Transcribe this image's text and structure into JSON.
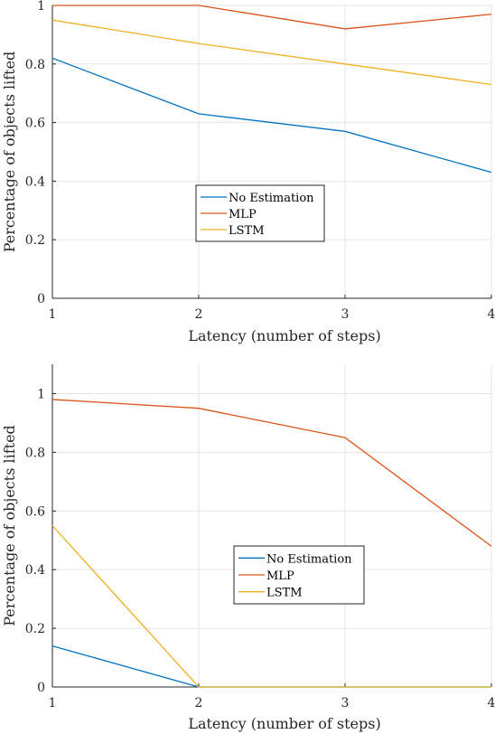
{
  "colors": {
    "no_estimation": "#0072bd",
    "mlp": "#d95319",
    "lstm": "#edb120"
  },
  "chart_data": [
    {
      "type": "line",
      "xlabel": "Latency (number of steps)",
      "ylabel": "Percentage of objects lifted",
      "x": [
        1,
        2,
        3,
        4
      ],
      "xticks": [
        "1",
        "2",
        "3",
        "4"
      ],
      "yticks": [
        "0",
        "0.2",
        "0.4",
        "0.6",
        "0.8",
        "1"
      ],
      "xlim": [
        1,
        4
      ],
      "ylim": [
        0,
        1
      ],
      "grid": true,
      "legend_position": "center-left",
      "series": [
        {
          "name": "No Estimation",
          "values": [
            0.82,
            0.63,
            0.57,
            0.43
          ]
        },
        {
          "name": "MLP",
          "values": [
            1.0,
            1.0,
            0.92,
            0.97
          ]
        },
        {
          "name": "LSTM",
          "values": [
            0.95,
            0.87,
            0.8,
            0.73
          ]
        }
      ]
    },
    {
      "type": "line",
      "xlabel": "Latency (number of steps)",
      "ylabel": "Percentage of objects lifted",
      "x": [
        1,
        2,
        3,
        4
      ],
      "xticks": [
        "1",
        "2",
        "3",
        "4"
      ],
      "yticks": [
        "0",
        "0.2",
        "0.4",
        "0.6",
        "0.8",
        "1"
      ],
      "xlim": [
        1,
        4
      ],
      "ylim": [
        0,
        1.1
      ],
      "grid": true,
      "legend_position": "center",
      "series": [
        {
          "name": "No Estimation",
          "values": [
            0.14,
            0.0,
            0.0,
            0.0
          ]
        },
        {
          "name": "MLP",
          "values": [
            0.98,
            0.95,
            0.85,
            0.48
          ]
        },
        {
          "name": "LSTM",
          "values": [
            0.55,
            0.0,
            0.0,
            0.0
          ]
        }
      ]
    }
  ]
}
